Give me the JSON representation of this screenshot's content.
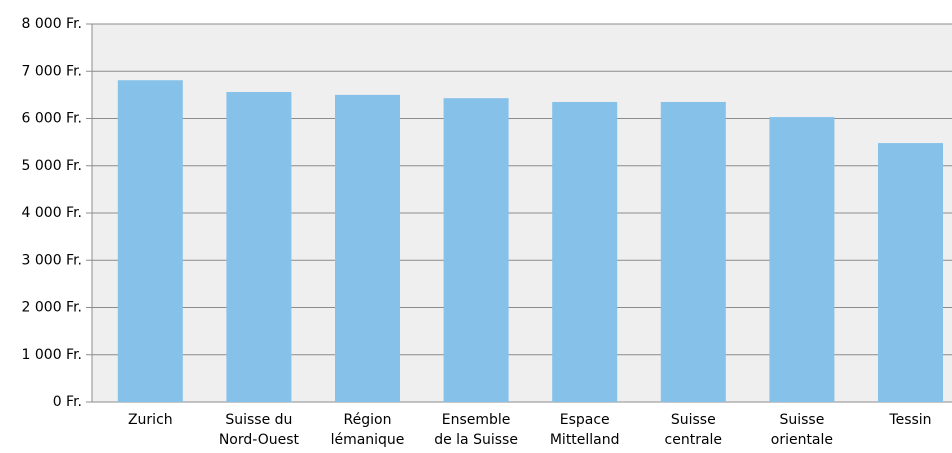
{
  "chart_data": {
    "type": "bar",
    "categories": [
      [
        "Zurich"
      ],
      [
        "Suisse du",
        "Nord-Ouest"
      ],
      [
        "Région",
        "lémanique"
      ],
      [
        "Ensemble",
        "de la Suisse"
      ],
      [
        "Espace",
        "Mittelland"
      ],
      [
        "Suisse",
        "centrale"
      ],
      [
        "Suisse",
        "orientale"
      ],
      [
        "Tessin"
      ]
    ],
    "values": [
      6810,
      6560,
      6500,
      6430,
      6350,
      6350,
      6030,
      5480
    ],
    "color": "#85c1e9",
    "ylim": [
      0,
      8000
    ],
    "yticks": [
      {
        "value": 0,
        "label": "0 Fr."
      },
      {
        "value": 1000,
        "label": "1 000 Fr."
      },
      {
        "value": 2000,
        "label": "2 000 Fr."
      },
      {
        "value": 3000,
        "label": "3 000 Fr."
      },
      {
        "value": 4000,
        "label": "4 000 Fr."
      },
      {
        "value": 5000,
        "label": "5 000 Fr."
      },
      {
        "value": 6000,
        "label": "6 000 Fr."
      },
      {
        "value": 7000,
        "label": "7 000 Fr."
      },
      {
        "value": 8000,
        "label": "8 000 Fr."
      }
    ],
    "grid": true
  }
}
